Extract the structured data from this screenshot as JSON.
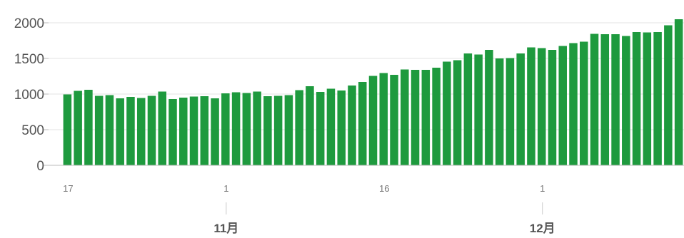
{
  "chart_data": {
    "type": "bar",
    "title": "",
    "xlabel": "",
    "ylabel": "",
    "ylim": [
      0,
      2000
    ],
    "y_ticks": [
      "0",
      "500",
      "1000",
      "1500",
      "2000"
    ],
    "x_ticks": [
      {
        "label": "17",
        "index": 0
      },
      {
        "label": "1",
        "index": 15
      },
      {
        "label": "16",
        "index": 30
      },
      {
        "label": "1",
        "index": 45
      }
    ],
    "month_labels": [
      {
        "label": "11月",
        "index": 15
      },
      {
        "label": "12月",
        "index": 45
      }
    ],
    "grid": true,
    "bar_color": "#1e9a3e",
    "values": [
      995,
      1045,
      1060,
      975,
      985,
      940,
      960,
      945,
      975,
      1035,
      930,
      950,
      965,
      970,
      940,
      1010,
      1025,
      1015,
      1035,
      970,
      975,
      985,
      1055,
      1110,
      1030,
      1075,
      1050,
      1120,
      1170,
      1255,
      1295,
      1270,
      1345,
      1340,
      1340,
      1370,
      1455,
      1475,
      1570,
      1555,
      1620,
      1500,
      1505,
      1570,
      1655,
      1645,
      1620,
      1675,
      1715,
      1735,
      1845,
      1840,
      1840,
      1815,
      1870,
      1865,
      1870,
      1965,
      2050
    ]
  }
}
